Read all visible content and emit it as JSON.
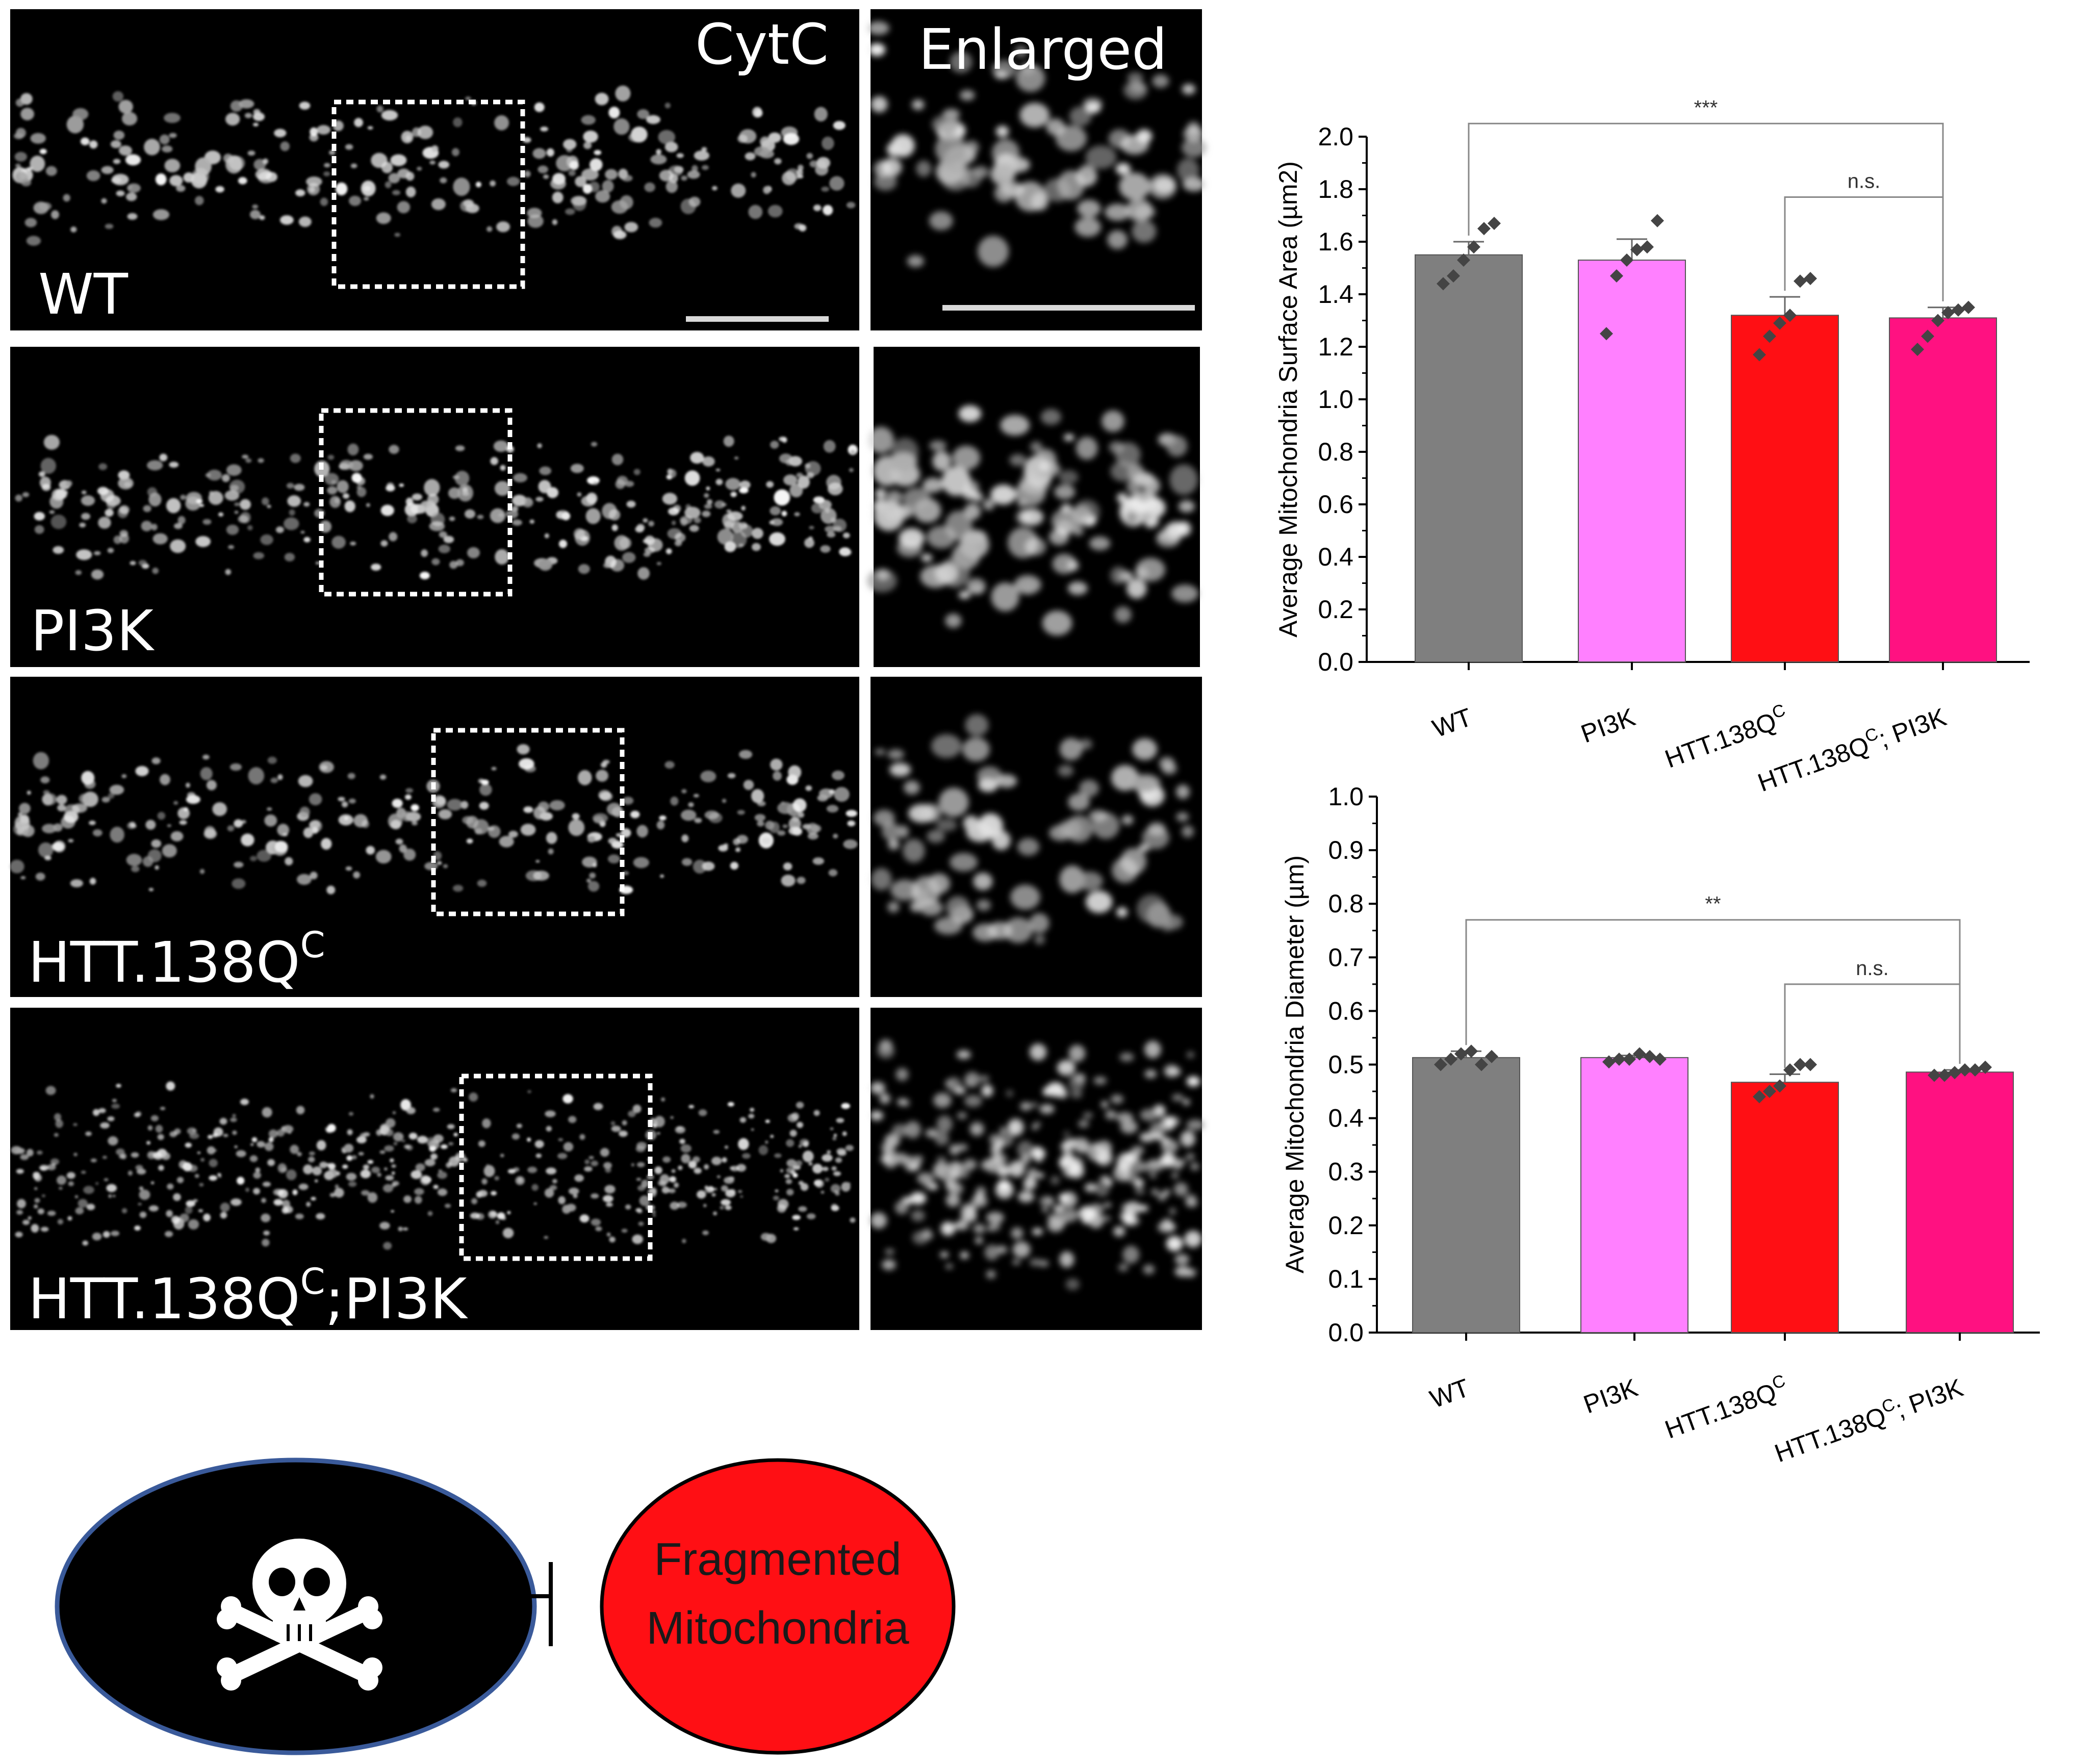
{
  "micrographs": {
    "channel_label": "CytC",
    "enlarged_label": "Enlarged",
    "rows": [
      {
        "label": "WT",
        "sup": "",
        "after": ""
      },
      {
        "label": "PI3K",
        "sup": "",
        "after": ""
      },
      {
        "label": "HTT.138Q",
        "sup": "C",
        "after": ""
      },
      {
        "label": "HTT.138Q",
        "sup": "C",
        "after": ";PI3K"
      }
    ]
  },
  "colors": {
    "WT": "#7f7f7f",
    "PI3K": "#ff80ff",
    "HTT": "#ff0f14",
    "HTT_PI3K": "#ff1181",
    "marker": "#444444",
    "fragmented_fill": "#ff0f14",
    "death_fill": "#000000",
    "death_stroke": "#3a5a9a"
  },
  "chart_data": [
    {
      "type": "bar",
      "categories": [
        "WT",
        "PI3K",
        "HTT.138Q^C",
        "HTT.138Q^C; PI3K"
      ],
      "category_labels": [
        {
          "main": "WT",
          "sup": "",
          "after": ""
        },
        {
          "main": "PI3K",
          "sup": "",
          "after": ""
        },
        {
          "main": "HTT.138Q",
          "sup": "C",
          "after": ""
        },
        {
          "main": "HTT.138Q",
          "sup": "C",
          "after": "; PI3K"
        }
      ],
      "values": [
        1.55,
        1.53,
        1.32,
        1.31
      ],
      "errors": [
        0.05,
        0.08,
        0.07,
        0.04
      ],
      "points": [
        [
          1.44,
          1.47,
          1.53,
          1.58,
          1.65,
          1.67
        ],
        [
          1.25,
          1.47,
          1.53,
          1.57,
          1.58,
          1.68
        ],
        [
          1.17,
          1.24,
          1.29,
          1.32,
          1.45,
          1.46
        ],
        [
          1.19,
          1.24,
          1.3,
          1.33,
          1.34,
          1.35
        ]
      ],
      "ylabel": "Average Mitochondria Surface Area (µm2)",
      "ylim": [
        0,
        2.0
      ],
      "yticks": [
        0.0,
        0.2,
        0.4,
        0.6,
        0.8,
        1.0,
        1.2,
        1.4,
        1.6,
        1.8,
        2.0
      ],
      "ytick_labels": [
        "0.0",
        "0.2",
        "0.4",
        "0.6",
        "0.8",
        "1.0",
        "1.2",
        "1.4",
        "1.6",
        "1.8",
        "2.0"
      ],
      "significance": [
        {
          "from": 0,
          "to": 3,
          "label": "***",
          "level": 2.05
        },
        {
          "from": 2,
          "to": 3,
          "label": "n.s.",
          "level": 1.77
        }
      ]
    },
    {
      "type": "bar",
      "categories": [
        "WT",
        "PI3K",
        "HTT.138Q^C",
        "HTT.138Q^C; PI3K"
      ],
      "category_labels": [
        {
          "main": "WT",
          "sup": "",
          "after": ""
        },
        {
          "main": "PI3K",
          "sup": "",
          "after": ""
        },
        {
          "main": "HTT.138Q",
          "sup": "C",
          "after": ""
        },
        {
          "main": "HTT.138Q",
          "sup": "C",
          "after": "; PI3K"
        }
      ],
      "values": [
        0.513,
        0.513,
        0.467,
        0.486
      ],
      "errors": [
        0.012,
        0.004,
        0.015,
        0.004
      ],
      "points": [
        [
          0.5,
          0.51,
          0.52,
          0.525,
          0.5,
          0.515
        ],
        [
          0.505,
          0.51,
          0.51,
          0.52,
          0.515,
          0.51
        ],
        [
          0.44,
          0.45,
          0.46,
          0.49,
          0.5,
          0.5
        ],
        [
          0.48,
          0.48,
          0.485,
          0.49,
          0.49,
          0.495
        ]
      ],
      "ylabel": "Average Mitochondria Diameter (µm)",
      "ylim": [
        0,
        1.0
      ],
      "yticks": [
        0.0,
        0.1,
        0.2,
        0.3,
        0.4,
        0.5,
        0.6,
        0.7,
        0.8,
        0.9,
        1.0
      ],
      "ytick_labels": [
        "0.0",
        "0.1",
        "0.2",
        "0.3",
        "0.4",
        "0.5",
        "0.6",
        "0.7",
        "0.8",
        "0.9",
        "1.0"
      ],
      "significance": [
        {
          "from": 0,
          "to": 3,
          "label": "**",
          "level": 0.77
        },
        {
          "from": 2,
          "to": 3,
          "label": "n.s.",
          "level": 0.65
        }
      ]
    }
  ],
  "diagram": {
    "death_icon": "skull-crossbones-icon",
    "inhibition_symbol": "inhibition-arrow-icon",
    "fragmented_line1": "Fragmented",
    "fragmented_line2": "Mitochondria"
  }
}
